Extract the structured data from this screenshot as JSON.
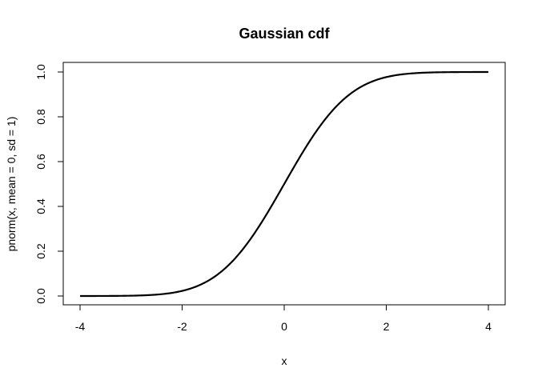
{
  "chart_data": {
    "type": "line",
    "title": "Gaussian cdf",
    "xlabel": "x",
    "ylabel": "pnorm(x, mean = 0, sd = 1)",
    "xlim": [
      -4,
      4
    ],
    "ylim": [
      0,
      1
    ],
    "x_ticks": [
      -4,
      -2,
      0,
      2,
      4
    ],
    "x_tick_labels": [
      "-4",
      "-2",
      "0",
      "2",
      "4"
    ],
    "y_ticks": [
      0.0,
      0.2,
      0.4,
      0.6,
      0.8,
      1.0
    ],
    "y_tick_labels": [
      "0.0",
      "0.2",
      "0.4",
      "0.6",
      "0.8",
      "1.0"
    ],
    "grid": false,
    "series": [
      {
        "color": "#000000",
        "x": [
          -4,
          -3.5,
          -3,
          -2.5,
          -2,
          -1.75,
          -1.5,
          -1.25,
          -1,
          -0.75,
          -0.5,
          -0.25,
          0,
          0.25,
          0.5,
          0.75,
          1,
          1.25,
          1.5,
          1.75,
          2,
          2.5,
          3,
          3.5,
          4
        ],
        "y": [
          0.0,
          0.0002,
          0.0013,
          0.0062,
          0.0228,
          0.0401,
          0.0668,
          0.1056,
          0.1587,
          0.2266,
          0.3085,
          0.4013,
          0.5,
          0.5987,
          0.6915,
          0.7734,
          0.8413,
          0.8944,
          0.9332,
          0.9599,
          0.9772,
          0.9938,
          0.9987,
          0.9998,
          1.0
        ]
      }
    ]
  }
}
